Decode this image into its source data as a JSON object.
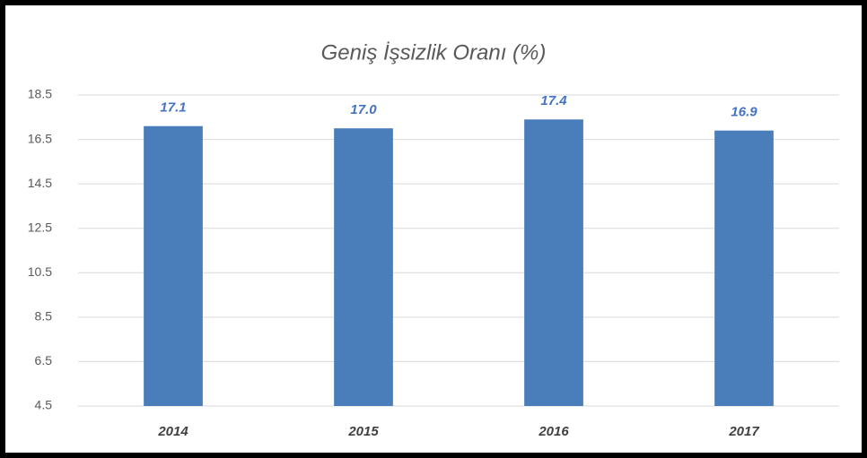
{
  "chart_data": {
    "type": "bar",
    "title": "Geniş İşsizlik Oranı (%)",
    "categories": [
      "2014",
      "2015",
      "2016",
      "2017"
    ],
    "values": [
      17.1,
      17.0,
      17.4,
      16.9
    ],
    "value_labels": [
      "17.1",
      "17.0",
      "17.4",
      "16.9"
    ],
    "color": "#4a7ebb",
    "ylim": [
      4.5,
      18.5
    ],
    "yticks": [
      4.5,
      6.5,
      8.5,
      10.5,
      12.5,
      14.5,
      16.5,
      18.5
    ],
    "grid": true
  }
}
